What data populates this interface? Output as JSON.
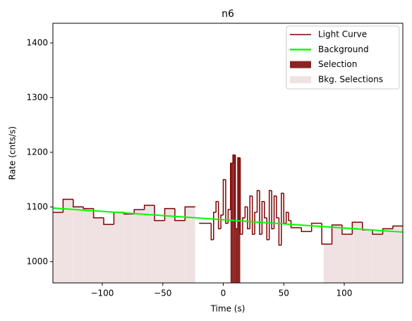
{
  "chart_data": {
    "type": "step",
    "title": "n6",
    "x_label": "Time (s)",
    "y_label": "Rate (cnts/s)",
    "xlim": [
      -140.8,
      148.4
    ],
    "ylim": [
      961,
      1436
    ],
    "xticks": [
      {
        "value": -100,
        "label": "−100"
      },
      {
        "value": -50,
        "label": "−50"
      },
      0,
      50,
      100
    ],
    "yticks": [
      1000,
      1100,
      1200,
      1300,
      1400
    ],
    "legend": "upper right",
    "series": [
      {
        "name": "Light Curve",
        "color": "#800000",
        "bins": [
          -140.8,
          -132.4,
          -124,
          -115.6,
          -107.2,
          -98.8,
          -90.4,
          -82,
          -73.6,
          -65.2,
          -56.8,
          -48.4,
          -40,
          -31.6,
          -23.2,
          -20,
          -10,
          -8,
          -6,
          -4,
          -2,
          0,
          2,
          4,
          6,
          8,
          10,
          12,
          14,
          16,
          18,
          20,
          22,
          24,
          26,
          28,
          30,
          32,
          34,
          36,
          38,
          40,
          42,
          44,
          46,
          48,
          50,
          52,
          54,
          56,
          64.6,
          73,
          81.4,
          89.8,
          98.2,
          106.6,
          115,
          123.4,
          131.8,
          140.2,
          148.4
        ],
        "values": [
          1090,
          1114,
          1100,
          1097,
          1080,
          1068,
          1090,
          1087,
          1095,
          1103,
          1075,
          1097,
          1075,
          1100,
          null,
          1070,
          1040,
          1090,
          1110,
          1060,
          1085,
          1150,
          1070,
          1095,
          1180,
          1195,
          1060,
          1190,
          1050,
          1080,
          1100,
          1060,
          1120,
          1050,
          1090,
          1130,
          1050,
          1110,
          1080,
          1040,
          1130,
          1060,
          1120,
          1080,
          1030,
          1125,
          1070,
          1090,
          1075,
          1062,
          1055,
          1070,
          1032,
          1067,
          1050,
          1072,
          1058,
          1050,
          1060,
          1065
        ]
      },
      {
        "name": "Background",
        "color": "#00ff00",
        "x": [
          -140.8,
          148.4
        ],
        "values": [
          1098,
          1054
        ]
      }
    ],
    "selection": {
      "name": "Selection",
      "color": "#8b2323",
      "ranges": [
        [
          6,
          14
        ]
      ]
    },
    "bkg_selection": {
      "name": "Bkg. Selections",
      "color": "#f0e2e2",
      "ranges": [
        [
          -140.8,
          -23.2
        ],
        [
          83,
          148.4
        ]
      ]
    }
  }
}
